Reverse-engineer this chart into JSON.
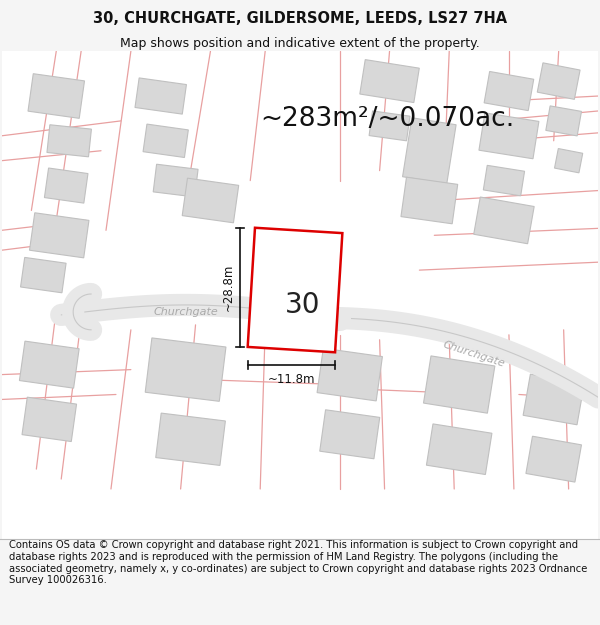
{
  "title_line1": "30, CHURCHGATE, GILDERSOME, LEEDS, LS27 7HA",
  "title_line2": "Map shows position and indicative extent of the property.",
  "area_text": "~283m²/~0.070ac.",
  "dim_height": "~28.8m",
  "dim_width": "~11.8m",
  "property_number": "30",
  "footer_text": "Contains OS data © Crown copyright and database right 2021. This information is subject to Crown copyright and database rights 2023 and is reproduced with the permission of HM Land Registry. The polygons (including the associated geometry, namely x, y co-ordinates) are subject to Crown copyright and database rights 2023 Ordnance Survey 100026316.",
  "bg_color": "#f5f5f5",
  "map_bg": "#ffffff",
  "road_line_color": "#e8a0a0",
  "road_fill_color": "#f0e0e0",
  "building_fill": "#d8d8d8",
  "building_edge": "#c0c0c0",
  "plot_fill": "#ffffff",
  "plot_edge": "#dd0000",
  "plot_edge_width": 1.8,
  "road_label_color": "#aaaaaa",
  "dim_color": "#111111",
  "title_fontsize": 10.5,
  "subtitle_fontsize": 9,
  "area_fontsize": 19,
  "dim_fontsize": 8.5,
  "number_fontsize": 20,
  "footer_fontsize": 7.2
}
